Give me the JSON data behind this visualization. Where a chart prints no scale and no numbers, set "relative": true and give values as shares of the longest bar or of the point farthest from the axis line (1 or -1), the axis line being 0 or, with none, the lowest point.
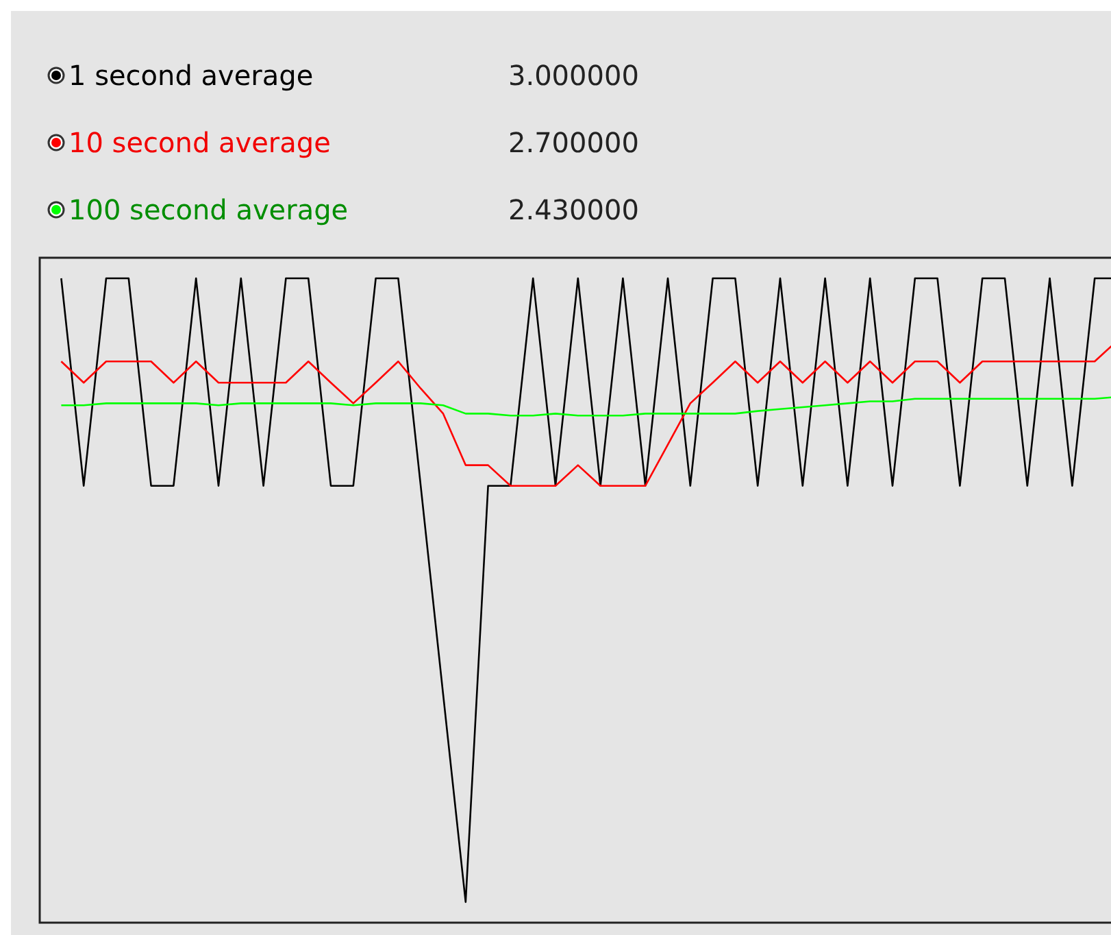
{
  "chart_data": {
    "type": "line",
    "relative": true,
    "legend": "top left",
    "marker": "none",
    "line_style": "solid",
    "categories": [
      null,
      null,
      null,
      null,
      null,
      null,
      null,
      null,
      null,
      null,
      null,
      null,
      null,
      null,
      null,
      null,
      null,
      null,
      null,
      null,
      null,
      null,
      null,
      null,
      null,
      null,
      null,
      null,
      null,
      null,
      null,
      null,
      null,
      null,
      null,
      null,
      null,
      null,
      null,
      null,
      null,
      null,
      null,
      null,
      null,
      null,
      null,
      null
    ],
    "annotations": [
      "3.000000",
      "2.700000",
      "2.430000"
    ],
    "series": [
      {
        "name": "1 second average",
        "color": "#000000",
        "values": [
          1,
          0.678,
          1,
          1,
          0.678,
          0.678,
          1,
          0.678,
          1,
          0.678,
          1,
          1,
          0.678,
          0.678,
          1,
          1,
          0.678,
          0.354,
          0.032,
          0.678,
          0.678,
          1,
          0.678,
          1,
          0.678,
          1,
          0.678,
          1,
          0.678,
          1,
          1,
          0.678,
          1,
          0.678,
          1,
          0.678,
          1,
          0.678,
          1,
          1,
          0.678,
          1,
          1,
          0.678,
          1,
          0.678,
          1,
          1
        ]
      },
      {
        "name": "10 second average",
        "color": "#ff0000",
        "values": [
          0.871,
          0.838,
          0.871,
          0.871,
          0.871,
          0.838,
          0.871,
          0.838,
          0.838,
          0.838,
          0.838,
          0.871,
          0.838,
          0.806,
          0.838,
          0.871,
          0.829,
          0.79,
          0.71,
          0.71,
          0.678,
          0.678,
          0.678,
          0.71,
          0.678,
          0.678,
          0.678,
          0.742,
          0.806,
          0.838,
          0.871,
          0.838,
          0.871,
          0.838,
          0.871,
          0.838,
          0.871,
          0.838,
          0.871,
          0.871,
          0.838,
          0.871,
          0.871,
          0.871,
          0.871,
          0.871,
          0.871,
          0.903
        ]
      },
      {
        "name": "100 second average",
        "color": "#00ff00",
        "values": [
          0.803,
          0.803,
          0.806,
          0.806,
          0.806,
          0.806,
          0.806,
          0.803,
          0.806,
          0.806,
          0.806,
          0.806,
          0.806,
          0.803,
          0.806,
          0.806,
          0.806,
          0.803,
          0.79,
          0.79,
          0.787,
          0.787,
          0.79,
          0.787,
          0.787,
          0.787,
          0.79,
          0.79,
          0.79,
          0.79,
          0.79,
          0.794,
          0.797,
          0.8,
          0.803,
          0.806,
          0.809,
          0.809,
          0.813,
          0.813,
          0.813,
          0.813,
          0.813,
          0.813,
          0.813,
          0.813,
          0.813,
          0.816
        ]
      }
    ]
  }
}
